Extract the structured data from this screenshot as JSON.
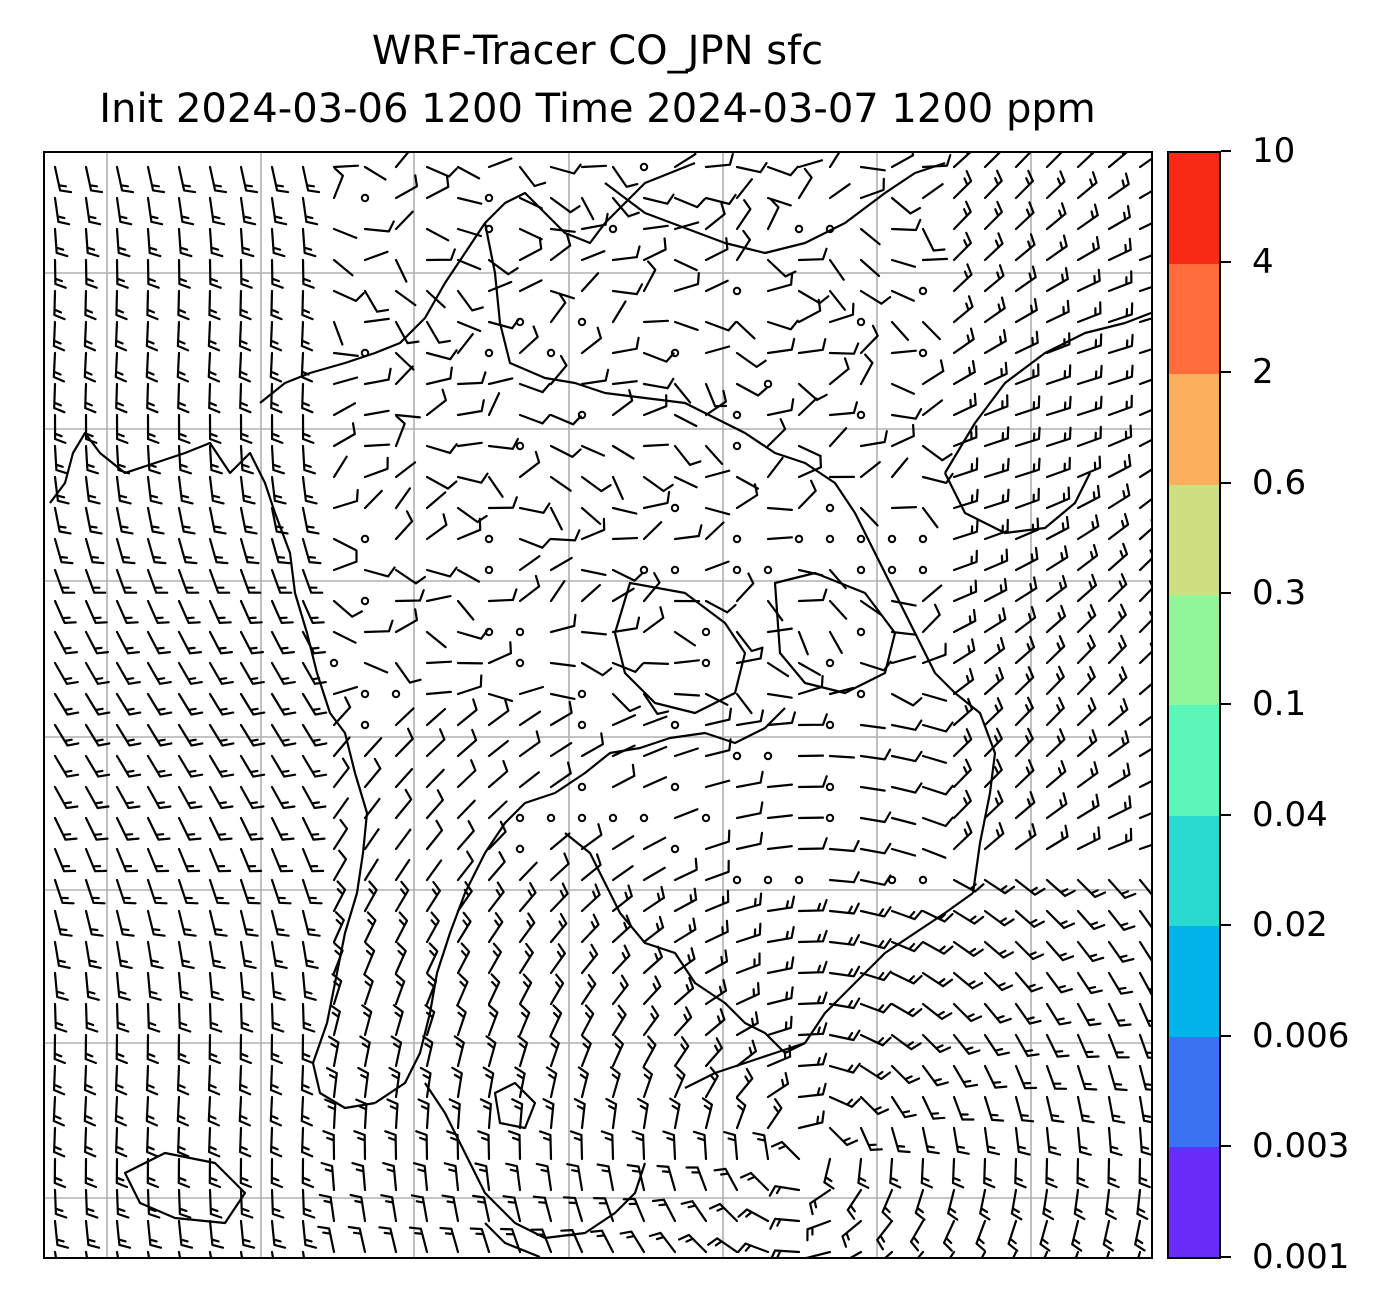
{
  "title": {
    "line1": "WRF-Tracer CO_JPN sfc",
    "line2": "Init 2024-03-06 1200 Time 2024-03-07 1200 ppm"
  },
  "map": {
    "projection_grid": "lat-lon",
    "gridlines": true,
    "gridline_color": "#b0b0b0",
    "coastline_color": "#000000",
    "barb_color": "#000000",
    "field_fill": "none (all below 0.001 ppm)"
  },
  "colorbar": {
    "labels": [
      "0.001",
      "0.003",
      "0.006",
      "0.02",
      "0.04",
      "0.1",
      "0.3",
      "0.6",
      "2",
      "4",
      "10"
    ],
    "colors": [
      "#6a2cf8",
      "#3a72f2",
      "#00b3ea",
      "#2ad9d0",
      "#5cf7b8",
      "#92f59a",
      "#cede80",
      "#fcb05e",
      "#ff6e3a",
      "#f82a14"
    ]
  }
}
